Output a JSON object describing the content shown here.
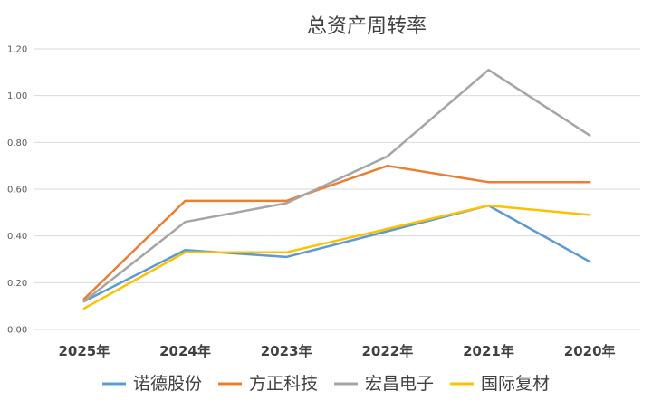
{
  "chart_data": {
    "type": "line",
    "title": "总资产周转率",
    "categories": [
      "2025年",
      "2024年",
      "2023年",
      "2022年",
      "2021年",
      "2020年"
    ],
    "ylim": [
      0,
      1.2
    ],
    "yticks": [
      "0.00",
      "0.20",
      "0.40",
      "0.60",
      "0.80",
      "1.00",
      "1.20"
    ],
    "grid": true,
    "legend_position": "bottom",
    "series": [
      {
        "name": "诺德股份",
        "color": "#5b9bd5",
        "values": [
          0.12,
          0.34,
          0.31,
          0.42,
          0.53,
          0.29
        ]
      },
      {
        "name": "方正科技",
        "color": "#ed7d31",
        "values": [
          0.13,
          0.55,
          0.55,
          0.7,
          0.63,
          0.63
        ]
      },
      {
        "name": "宏昌电子",
        "color": "#a5a5a5",
        "values": [
          0.12,
          0.46,
          0.54,
          0.74,
          1.11,
          0.83
        ]
      },
      {
        "name": "国际复材",
        "color": "#ffc000",
        "values": [
          0.09,
          0.33,
          0.33,
          0.43,
          0.53,
          0.49
        ]
      }
    ]
  }
}
